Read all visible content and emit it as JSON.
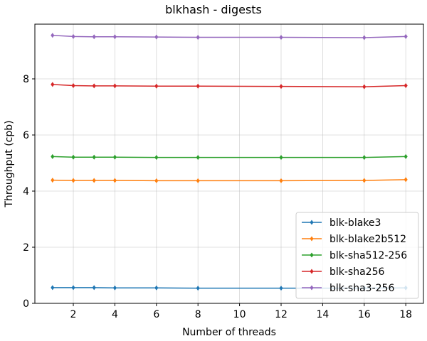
{
  "chart_data": {
    "type": "line",
    "title": "blkhash - digests",
    "xlabel": "Number of threads",
    "ylabel": "Throughput (cpb)",
    "x": [
      1,
      2,
      3,
      4,
      6,
      8,
      12,
      16,
      18
    ],
    "xticks": [
      2,
      4,
      6,
      8,
      10,
      12,
      14,
      16,
      18
    ],
    "yticks": [
      0,
      2,
      4,
      6,
      8
    ],
    "xlim": [
      0.15,
      18.85
    ],
    "ylim": [
      0,
      9.95
    ],
    "grid": true,
    "legend_position": "bottom-right",
    "series": [
      {
        "name": "blk-blake3",
        "color": "#1f77b4",
        "values": [
          0.56,
          0.56,
          0.56,
          0.55,
          0.55,
          0.54,
          0.54,
          0.54,
          0.55
        ]
      },
      {
        "name": "blk-blake2b512",
        "color": "#ff7f0e",
        "values": [
          4.39,
          4.38,
          4.38,
          4.38,
          4.37,
          4.37,
          4.37,
          4.38,
          4.41
        ]
      },
      {
        "name": "blk-sha512-256",
        "color": "#2ca02c",
        "values": [
          5.23,
          5.21,
          5.21,
          5.21,
          5.2,
          5.2,
          5.2,
          5.2,
          5.23
        ]
      },
      {
        "name": "blk-sha256",
        "color": "#d62728",
        "values": [
          7.8,
          7.76,
          7.75,
          7.75,
          7.74,
          7.74,
          7.73,
          7.72,
          7.76
        ]
      },
      {
        "name": "blk-sha3-256",
        "color": "#9467bd",
        "values": [
          9.55,
          9.51,
          9.5,
          9.5,
          9.49,
          9.48,
          9.48,
          9.47,
          9.51
        ]
      }
    ]
  }
}
